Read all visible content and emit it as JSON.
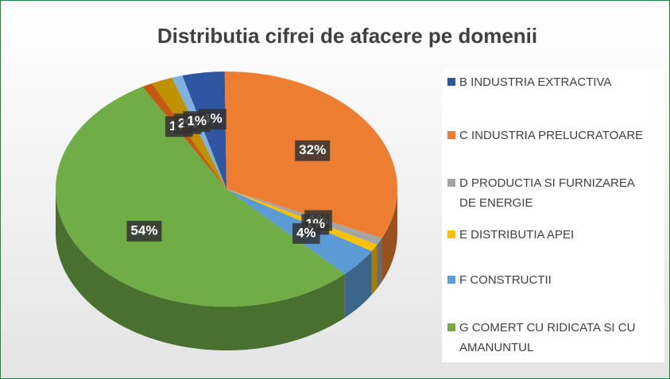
{
  "chart_data": {
    "type": "pie",
    "title": "Distributia cifrei de afacere pe domenii",
    "categories": [
      "B INDUSTRIA EXTRACTIVA",
      "C INDUSTRIA PRELUCRATOARE",
      "D PRODUCTIA SI FURNIZAREA DE ENERGIE",
      "E DISTRIBUTIA APEI",
      "F CONSTRUCTII",
      "G COMERT CU RIDICATA SI CU AMANUNTUL",
      null,
      null,
      null
    ],
    "values": [
      4,
      32,
      1,
      1,
      4,
      54,
      1,
      2,
      1
    ],
    "value_labels": [
      "4%",
      "32%",
      "1%",
      "1%",
      "4%",
      "54%",
      "1%",
      "2%",
      "1%"
    ],
    "colors": [
      "#2f56a0",
      "#ed7d31",
      "#a5a5a5",
      "#ffc000",
      "#5b9bd5",
      "#70ad47",
      "#c55a11",
      "#bf9000",
      "#7fb2e0"
    ]
  }
}
